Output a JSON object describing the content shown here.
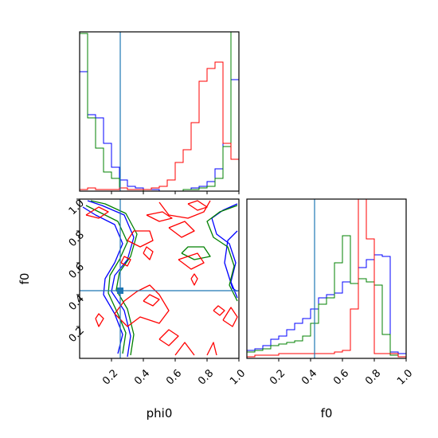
{
  "chart_data": {
    "type": "corner",
    "parameters": [
      "phi0",
      "f0"
    ],
    "xlabel_phi0": "phi0",
    "xlabel_f0": "f0",
    "ylabel_f0": "f0",
    "ticks": {
      "phi0": [
        "0.2",
        "0.4",
        "0.6",
        "0.8",
        "1.0"
      ],
      "f0": [
        "0.2",
        "0.4",
        "0.6",
        "0.8",
        "1.0"
      ]
    },
    "truth": {
      "phi0": 0.255,
      "f0": 0.425
    },
    "colors": {
      "blue": "#0000ff",
      "green": "#008000",
      "red": "#ff0000",
      "truth": "#1f77b4"
    },
    "histograms": {
      "phi0": {
        "bins": [
          0.0,
          0.05,
          0.1,
          0.15,
          0.2,
          0.25,
          0.3,
          0.35,
          0.4,
          0.45,
          0.5,
          0.55,
          0.6,
          0.65,
          0.7,
          0.75,
          0.8,
          0.85,
          0.9,
          0.95,
          1.0
        ],
        "series": [
          {
            "color": "blue",
            "values": [
              0.75,
              0.48,
              0.46,
              0.3,
              0.15,
              0.07,
              0.03,
              0.02,
              0.01,
              0.01,
              0.0,
              0.0,
              0.0,
              0.01,
              0.02,
              0.03,
              0.06,
              0.14,
              0.3,
              0.7
            ]
          },
          {
            "color": "green",
            "values": [
              0.99,
              0.46,
              0.27,
              0.12,
              0.08,
              0.02,
              0.01,
              0.01,
              0.0,
              0.0,
              0.0,
              0.0,
              0.0,
              0.01,
              0.01,
              0.02,
              0.03,
              0.08,
              0.28,
              1.0
            ]
          },
          {
            "color": "red",
            "values": [
              0.01,
              0.02,
              0.01,
              0.01,
              0.01,
              0.02,
              0.01,
              0.01,
              0.01,
              0.02,
              0.03,
              0.07,
              0.18,
              0.26,
              0.43,
              0.69,
              0.77,
              0.81,
              0.3,
              0.2
            ]
          }
        ]
      },
      "f0": {
        "bins": [
          0.0,
          0.05,
          0.1,
          0.15,
          0.2,
          0.25,
          0.3,
          0.35,
          0.4,
          0.45,
          0.5,
          0.55,
          0.6,
          0.65,
          0.7,
          0.75,
          0.8,
          0.85,
          0.9,
          0.95,
          1.0
        ],
        "series": [
          {
            "color": "blue",
            "values": [
              0.05,
              0.06,
              0.08,
              0.12,
              0.14,
              0.18,
              0.22,
              0.25,
              0.31,
              0.38,
              0.4,
              0.41,
              0.48,
              0.47,
              0.57,
              0.62,
              0.65,
              0.64,
              0.04,
              0.03
            ]
          },
          {
            "color": "green",
            "values": [
              0.04,
              0.05,
              0.06,
              0.08,
              0.09,
              0.1,
              0.11,
              0.14,
              0.22,
              0.34,
              0.38,
              0.6,
              0.77,
              0.47,
              0.5,
              0.48,
              0.46,
              0.15,
              0.02,
              0.01
            ]
          },
          {
            "color": "red",
            "values": [
              0.01,
              0.02,
              0.02,
              0.02,
              0.03,
              0.03,
              0.03,
              0.03,
              0.03,
              0.03,
              0.03,
              0.04,
              0.05,
              0.31,
              1.05,
              0.75,
              0.03,
              0.03,
              0.03,
              0.01
            ]
          }
        ]
      }
    },
    "contours": [
      {
        "color": "blue",
        "level": "inner",
        "points": [
          [
            0.02,
            0.95
          ],
          [
            0.1,
            0.9
          ],
          [
            0.22,
            0.84
          ],
          [
            0.27,
            0.72
          ],
          [
            0.22,
            0.6
          ],
          [
            0.16,
            0.5
          ],
          [
            0.15,
            0.4
          ],
          [
            0.22,
            0.28
          ],
          [
            0.27,
            0.15
          ],
          [
            0.24,
            0.03
          ]
        ]
      },
      {
        "color": "blue",
        "level": "outer",
        "points": [
          [
            0.05,
            0.99
          ],
          [
            0.14,
            0.96
          ],
          [
            0.28,
            0.9
          ],
          [
            0.34,
            0.76
          ],
          [
            0.3,
            0.62
          ],
          [
            0.22,
            0.52
          ],
          [
            0.2,
            0.42
          ],
          [
            0.28,
            0.3
          ],
          [
            0.32,
            0.14
          ],
          [
            0.3,
            0.01
          ]
        ]
      },
      {
        "color": "blue",
        "level": "inner",
        "points": [
          [
            0.99,
            0.97
          ],
          [
            0.9,
            0.93
          ],
          [
            0.83,
            0.88
          ],
          [
            0.86,
            0.78
          ],
          [
            0.94,
            0.72
          ],
          [
            0.98,
            0.6
          ],
          [
            0.95,
            0.48
          ],
          [
            0.99,
            0.38
          ]
        ]
      },
      {
        "color": "blue",
        "level": "outer",
        "points": [
          [
            0.99,
            0.8
          ],
          [
            0.93,
            0.74
          ],
          [
            0.91,
            0.6
          ],
          [
            0.96,
            0.44
          ],
          [
            0.99,
            0.42
          ]
        ]
      },
      {
        "color": "green",
        "level": "inner",
        "points": [
          [
            0.04,
            0.96
          ],
          [
            0.12,
            0.92
          ],
          [
            0.24,
            0.86
          ],
          [
            0.3,
            0.73
          ],
          [
            0.25,
            0.62
          ],
          [
            0.19,
            0.52
          ],
          [
            0.18,
            0.41
          ],
          [
            0.24,
            0.28
          ],
          [
            0.29,
            0.16
          ],
          [
            0.27,
            0.03
          ]
        ]
      },
      {
        "color": "green",
        "level": "outer",
        "points": [
          [
            0.07,
            0.99
          ],
          [
            0.16,
            0.97
          ],
          [
            0.29,
            0.91
          ],
          [
            0.36,
            0.78
          ],
          [
            0.32,
            0.64
          ],
          [
            0.25,
            0.54
          ],
          [
            0.23,
            0.43
          ],
          [
            0.3,
            0.31
          ],
          [
            0.34,
            0.15
          ],
          [
            0.32,
            0.02
          ]
        ]
      },
      {
        "color": "green",
        "level": "inner",
        "points": [
          [
            0.99,
            0.96
          ],
          [
            0.88,
            0.92
          ],
          [
            0.8,
            0.86
          ],
          [
            0.84,
            0.76
          ],
          [
            0.93,
            0.7
          ],
          [
            0.97,
            0.58
          ],
          [
            0.94,
            0.46
          ],
          [
            0.99,
            0.36
          ]
        ]
      },
      {
        "color": "green",
        "level": "outer",
        "points": [
          [
            0.64,
            0.66
          ],
          [
            0.72,
            0.62
          ],
          [
            0.82,
            0.64
          ],
          [
            0.78,
            0.7
          ],
          [
            0.68,
            0.7
          ],
          [
            0.64,
            0.66
          ]
        ]
      },
      {
        "color": "red",
        "level": "inner",
        "points": [
          [
            0.68,
            0.97
          ],
          [
            0.74,
            0.93
          ],
          [
            0.8,
            0.95
          ],
          [
            0.74,
            0.99
          ],
          [
            0.68,
            0.97
          ]
        ]
      },
      {
        "color": "red",
        "level": "inner",
        "points": [
          [
            0.42,
            0.9
          ],
          [
            0.5,
            0.86
          ],
          [
            0.58,
            0.88
          ],
          [
            0.52,
            0.92
          ],
          [
            0.42,
            0.9
          ]
        ]
      },
      {
        "color": "red",
        "level": "inner",
        "points": [
          [
            0.4,
            0.66
          ],
          [
            0.44,
            0.62
          ],
          [
            0.46,
            0.67
          ],
          [
            0.42,
            0.7
          ],
          [
            0.4,
            0.66
          ]
        ]
      },
      {
        "color": "red",
        "level": "inner",
        "points": [
          [
            0.26,
            0.6
          ],
          [
            0.3,
            0.58
          ],
          [
            0.32,
            0.62
          ],
          [
            0.28,
            0.64
          ],
          [
            0.26,
            0.6
          ]
        ]
      },
      {
        "color": "red",
        "level": "inner",
        "points": [
          [
            0.7,
            0.5
          ],
          [
            0.72,
            0.46
          ],
          [
            0.74,
            0.5
          ],
          [
            0.72,
            0.53
          ],
          [
            0.7,
            0.5
          ]
        ]
      },
      {
        "color": "red",
        "level": "inner",
        "points": [
          [
            0.4,
            0.36
          ],
          [
            0.46,
            0.33
          ],
          [
            0.5,
            0.37
          ],
          [
            0.44,
            0.4
          ],
          [
            0.4,
            0.36
          ]
        ]
      },
      {
        "color": "red",
        "level": "inner",
        "points": [
          [
            0.84,
            0.3
          ],
          [
            0.88,
            0.27
          ],
          [
            0.91,
            0.3
          ],
          [
            0.87,
            0.33
          ],
          [
            0.84,
            0.3
          ]
        ]
      },
      {
        "color": "red",
        "level": "inner",
        "points": [
          [
            0.1,
            0.25
          ],
          [
            0.12,
            0.2
          ],
          [
            0.15,
            0.25
          ],
          [
            0.12,
            0.28
          ],
          [
            0.1,
            0.25
          ]
        ]
      },
      {
        "color": "red",
        "level": "inner",
        "points": [
          [
            0.5,
            0.12
          ],
          [
            0.56,
            0.08
          ],
          [
            0.62,
            0.14
          ],
          [
            0.56,
            0.18
          ],
          [
            0.5,
            0.12
          ]
        ]
      },
      {
        "color": "red",
        "level": "inner",
        "points": [
          [
            0.6,
            0.02
          ],
          [
            0.66,
            0.1
          ],
          [
            0.72,
            0.02
          ]
        ]
      },
      {
        "color": "red",
        "level": "inner",
        "points": [
          [
            0.8,
            0.02
          ],
          [
            0.84,
            0.1
          ],
          [
            0.86,
            0.02
          ]
        ]
      },
      {
        "color": "red",
        "level": "outer",
        "points": [
          [
            0.5,
            0.98
          ],
          [
            0.56,
            0.9
          ],
          [
            0.68,
            0.88
          ],
          [
            0.78,
            0.92
          ],
          [
            0.82,
            0.99
          ]
        ]
      },
      {
        "color": "red",
        "level": "outer",
        "points": [
          [
            0.22,
            0.28
          ],
          [
            0.3,
            0.2
          ],
          [
            0.38,
            0.26
          ],
          [
            0.5,
            0.22
          ],
          [
            0.56,
            0.3
          ],
          [
            0.5,
            0.4
          ],
          [
            0.44,
            0.46
          ],
          [
            0.36,
            0.42
          ],
          [
            0.28,
            0.36
          ],
          [
            0.22,
            0.28
          ]
        ]
      },
      {
        "color": "red",
        "level": "outer",
        "points": [
          [
            0.3,
            0.74
          ],
          [
            0.38,
            0.7
          ],
          [
            0.46,
            0.74
          ],
          [
            0.44,
            0.8
          ],
          [
            0.34,
            0.8
          ],
          [
            0.3,
            0.74
          ]
        ]
      },
      {
        "color": "red",
        "level": "outer",
        "points": [
          [
            0.56,
            0.82
          ],
          [
            0.64,
            0.76
          ],
          [
            0.72,
            0.8
          ],
          [
            0.66,
            0.86
          ],
          [
            0.56,
            0.82
          ]
        ]
      },
      {
        "color": "red",
        "level": "outer",
        "points": [
          [
            0.04,
            0.9
          ],
          [
            0.12,
            0.88
          ],
          [
            0.18,
            0.92
          ],
          [
            0.12,
            0.95
          ],
          [
            0.04,
            0.9
          ]
        ]
      },
      {
        "color": "red",
        "level": "outer",
        "points": [
          [
            0.9,
            0.24
          ],
          [
            0.96,
            0.2
          ],
          [
            0.99,
            0.26
          ],
          [
            0.95,
            0.32
          ],
          [
            0.9,
            0.24
          ]
        ]
      },
      {
        "color": "red",
        "level": "outer",
        "points": [
          [
            0.62,
            0.62
          ],
          [
            0.7,
            0.56
          ],
          [
            0.78,
            0.6
          ],
          [
            0.74,
            0.66
          ],
          [
            0.62,
            0.62
          ]
        ]
      }
    ]
  }
}
